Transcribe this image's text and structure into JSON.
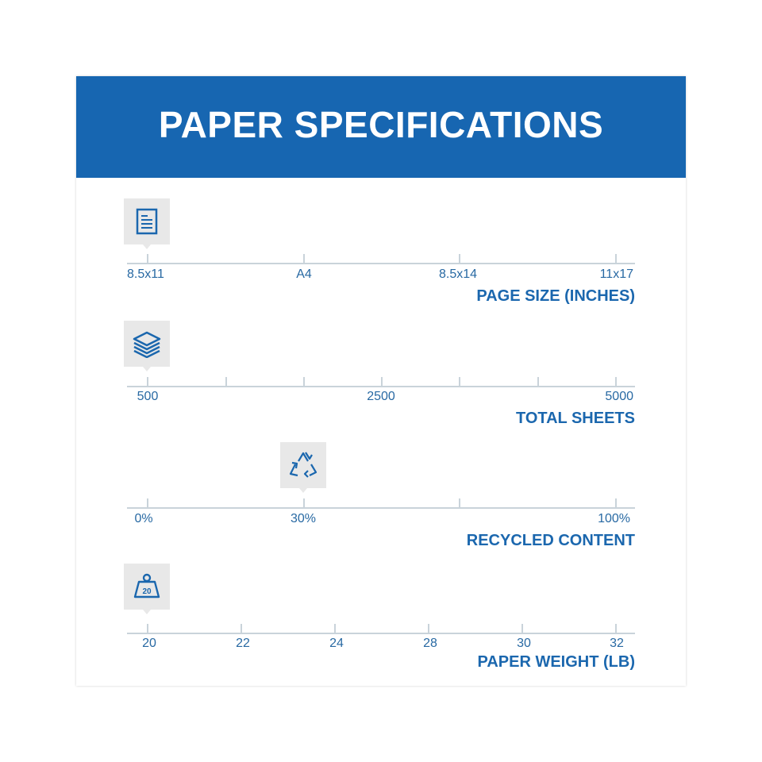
{
  "header": {
    "title": "PAPER SPECIFICATIONS"
  },
  "colors": {
    "header_bg": "#1766b1",
    "accent_text": "#1b67ae",
    "tick_label": "#2869a3",
    "axis": "#c9d3da",
    "icon_bg": "#e8e8e8"
  },
  "specs": [
    {
      "title": "PAGE SIZE (INCHES)",
      "icon": "document-icon",
      "selected": "8.5x11",
      "labels": [
        "8.5x11",
        "A4",
        "8.5x14",
        "11x17"
      ]
    },
    {
      "title": "TOTAL SHEETS",
      "icon": "paper-stack-icon",
      "selected": "500",
      "labels": [
        "500",
        "2500",
        "5000"
      ]
    },
    {
      "title": "RECYCLED CONTENT",
      "icon": "recycle-icon",
      "selected": "30%",
      "labels": [
        "0%",
        "30%",
        "100%"
      ]
    },
    {
      "title": "PAPER WEIGHT (LB)",
      "icon": "weight-icon",
      "selected": "20",
      "icon_text": "20",
      "labels": [
        "20",
        "22",
        "24",
        "28",
        "30",
        "32"
      ]
    }
  ]
}
